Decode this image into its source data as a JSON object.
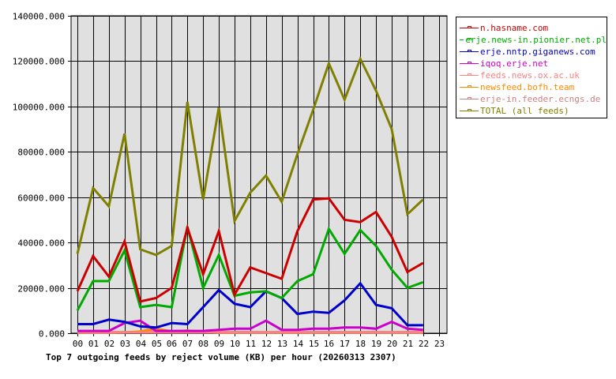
{
  "chart_data": {
    "type": "line",
    "title": "Top 7 outgoing feeds by reject volume (KB) per hour (20260313 2307)",
    "xlabel": "",
    "ylabel": "",
    "ylim": [
      0,
      140000
    ],
    "grid": true,
    "legend_position": "right",
    "y_ticks": [
      "0.000",
      "20000.000",
      "40000.000",
      "60000.000",
      "80000.000",
      "100000.000",
      "120000.000",
      "140000.000"
    ],
    "categories": [
      "00",
      "01",
      "02",
      "03",
      "04",
      "05",
      "06",
      "07",
      "08",
      "09",
      "10",
      "11",
      "12",
      "13",
      "14",
      "15",
      "16",
      "17",
      "18",
      "19",
      "20",
      "21",
      "22",
      "23"
    ],
    "series": [
      {
        "name": "n.hasname.com",
        "color": "#cc0000",
        "values": [
          18500,
          34000,
          25000,
          40500,
          14000,
          15500,
          20000,
          46500,
          26000,
          45000,
          17000,
          29000,
          26500,
          24000,
          45000,
          59000,
          59500,
          50000,
          49000,
          53500,
          42500,
          27000,
          31000,
          null
        ]
      },
      {
        "name": "erje.news-in.pionier.net.pl",
        "color": "#00aa00",
        "values": [
          10000,
          23000,
          23000,
          36500,
          11500,
          12500,
          11500,
          47000,
          20000,
          34500,
          16500,
          18000,
          18500,
          15500,
          23000,
          26000,
          46000,
          35000,
          45500,
          38500,
          28000,
          20000,
          22500,
          null
        ]
      },
      {
        "name": "erje.nntp.giganews.com",
        "color": "#0000cc",
        "values": [
          4000,
          4000,
          6000,
          5000,
          3000,
          2500,
          4500,
          4000,
          11500,
          19000,
          13000,
          11500,
          18500,
          15500,
          8500,
          9500,
          9000,
          14500,
          22000,
          12500,
          11000,
          3500,
          3500,
          null
        ]
      },
      {
        "name": "iqoq.erje.net",
        "color": "#cc00cc",
        "values": [
          1000,
          1000,
          1000,
          4500,
          5500,
          1000,
          1000,
          1000,
          1000,
          1500,
          2000,
          2000,
          5500,
          1500,
          1500,
          2000,
          2000,
          2500,
          2500,
          2000,
          5000,
          2000,
          1500,
          null
        ]
      },
      {
        "name": "feeds.news.ox.ac.uk",
        "color": "#ff8080",
        "values": [
          300,
          300,
          300,
          300,
          300,
          300,
          300,
          300,
          300,
          300,
          300,
          300,
          300,
          300,
          300,
          300,
          300,
          300,
          300,
          300,
          300,
          300,
          300,
          null
        ]
      },
      {
        "name": "newsfeed.bofh.team",
        "color": "#ff8800",
        "values": [
          200,
          200,
          200,
          300,
          800,
          2000,
          800,
          1200,
          500,
          200,
          200,
          200,
          200,
          200,
          200,
          200,
          200,
          200,
          200,
          200,
          200,
          200,
          200,
          null
        ]
      },
      {
        "name": "erje-in.feeder.ecngs.de",
        "color": "#cc8080",
        "values": [
          500,
          500,
          500,
          500,
          500,
          500,
          500,
          500,
          500,
          500,
          500,
          500,
          500,
          500,
          500,
          500,
          500,
          500,
          500,
          500,
          500,
          500,
          500,
          null
        ]
      },
      {
        "name": "TOTAL (all feeds)",
        "color": "#808000",
        "values": [
          35000,
          64000,
          56000,
          88000,
          37000,
          34500,
          38500,
          102000,
          59000,
          99500,
          49500,
          62000,
          69500,
          58000,
          79000,
          98500,
          119000,
          103000,
          121000,
          107000,
          90000,
          52500,
          59000,
          null
        ]
      }
    ]
  },
  "legend": {
    "items": [
      {
        "label": "n.hasname.com",
        "color": "#cc0000"
      },
      {
        "label": "erje.news-in.pionier.net.pl",
        "color": "#00aa00"
      },
      {
        "label": "erje.nntp.giganews.com",
        "color": "#0000cc"
      },
      {
        "label": "iqoq.erje.net",
        "color": "#cc00cc"
      },
      {
        "label": "feeds.news.ox.ac.uk",
        "color": "#ff8080"
      },
      {
        "label": "newsfeed.bofh.team",
        "color": "#ff8800"
      },
      {
        "label": "erje-in.feeder.ecngs.de",
        "color": "#cc8080"
      },
      {
        "label": "TOTAL (all feeds)",
        "color": "#808000"
      }
    ]
  }
}
